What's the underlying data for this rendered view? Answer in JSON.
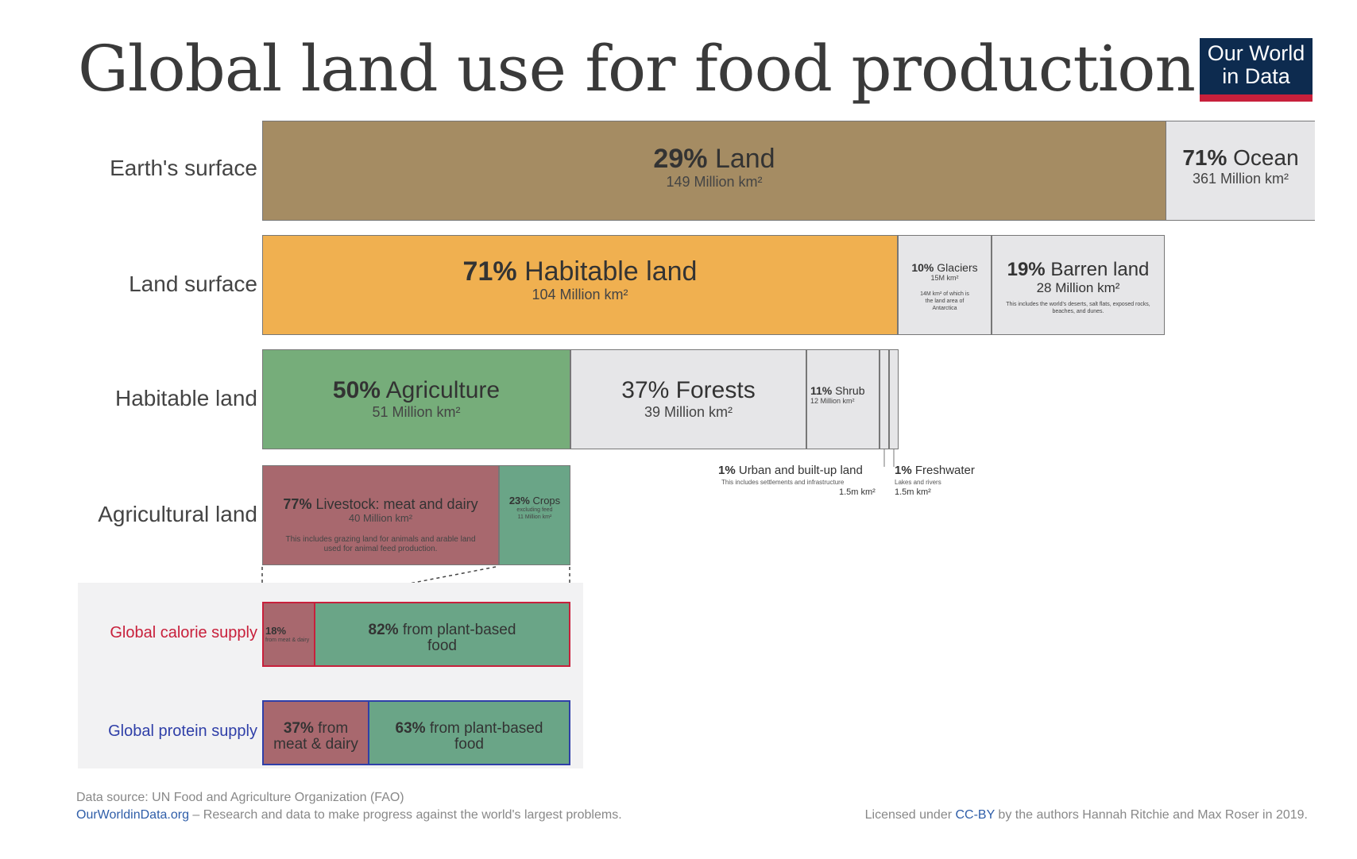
{
  "title": "Global land use for food production",
  "logo": {
    "line1": "Our World",
    "line2": "in Data",
    "color_bg": "#0d2b4f",
    "color_accent": "#c8203b"
  },
  "chart_data": {
    "type": "table",
    "rows": [
      {
        "label": "Earth's surface",
        "segments": [
          {
            "pct_label": "29%",
            "name": "Land",
            "area": "149 Million km²",
            "value": 149,
            "color": "#a58c63"
          },
          {
            "pct_label": "71%",
            "name": "Ocean",
            "area": "361 Million km²",
            "value": 361,
            "color": "#e6e6e8"
          }
        ]
      },
      {
        "label": "Land surface",
        "segments": [
          {
            "pct_label": "71%",
            "name": "Habitable land",
            "area": "104 Million km²",
            "value": 104,
            "color": "#f0b050"
          },
          {
            "pct_label": "10%",
            "name": "Glaciers",
            "area": "15M km²",
            "note": "14M km² of which is the land area of Antarctica",
            "value": 15,
            "color": "#e6e6e8"
          },
          {
            "pct_label": "19%",
            "name": "Barren land",
            "area": "28 Million km²",
            "note": "This includes the world's deserts, salt flats, exposed rocks, beaches, and dunes.",
            "value": 28,
            "color": "#e6e6e8"
          }
        ]
      },
      {
        "label": "Habitable land",
        "segments": [
          {
            "pct_label": "50%",
            "name": "Agriculture",
            "area": "51 Million km²",
            "value": 51,
            "color": "#76ad7a"
          },
          {
            "pct_label": "37%",
            "name": "Forests",
            "area": "39 Million km²",
            "value": 39,
            "color": "#e6e6e8"
          },
          {
            "pct_label": "11%",
            "name": "Shrub",
            "area": "12 Million km²",
            "value": 12,
            "color": "#e6e6e8"
          },
          {
            "pct_label": "1%",
            "name": "Urban and built-up land",
            "area": "1.5m km²",
            "note": "This includes settlements and infrastructure",
            "value": 1.5,
            "color": "#e6e6e8"
          },
          {
            "pct_label": "1%",
            "name": "Freshwater",
            "area": "1.5m km²",
            "note": "Lakes and rivers",
            "value": 1.5,
            "color": "#e6e6e8"
          }
        ]
      },
      {
        "label": "Agricultural land",
        "segments": [
          {
            "pct_label": "77%",
            "name": "Livestock: meat and dairy",
            "area": "40 Million km²",
            "note": "This includes grazing land for animals and arable land used for animal feed production.",
            "value": 40,
            "color": "#a8686e"
          },
          {
            "pct_label": "23%",
            "name": "Crops",
            "area": "11 Million km²",
            "note": "excluding feed",
            "value": 11,
            "color": "#6aa587"
          }
        ]
      }
    ],
    "supply": [
      {
        "label": "Global calorie supply",
        "label_color": "#c8203b",
        "border_color": "#c8203b",
        "segments": [
          {
            "pct_label": "18%",
            "name": "from meat & dairy",
            "value": 18,
            "color": "#a8686e"
          },
          {
            "pct_label": "82%",
            "name": "from plant-based food",
            "value": 82,
            "color": "#6aa587"
          }
        ]
      },
      {
        "label": "Global protein supply",
        "label_color": "#2f3fa8",
        "border_color": "#2f3fa8",
        "segments": [
          {
            "pct_label": "37%",
            "name": "from meat & dairy",
            "value": 37,
            "color": "#a8686e"
          },
          {
            "pct_label": "63%",
            "name": "from plant-based food",
            "value": 63,
            "color": "#6aa587"
          }
        ]
      }
    ]
  },
  "footer": {
    "source": "Data source: UN Food and Agriculture Organization (FAO)",
    "site": "OurWorldinData.org",
    "tagline": " – Research and data to make progress against the world's largest problems.",
    "license_pre": "Licensed under ",
    "license_link": "CC-BY",
    "license_post": " by the authors Hannah Ritchie and Max Roser in 2019."
  }
}
